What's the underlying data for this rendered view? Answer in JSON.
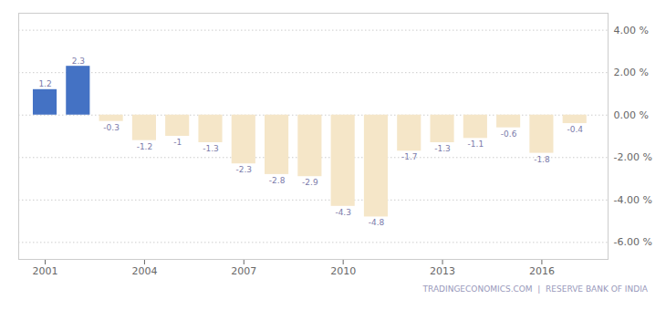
{
  "chart_data": {
    "type": "bar",
    "x": [
      2001,
      2002,
      2003,
      2004,
      2005,
      2006,
      2007,
      2008,
      2009,
      2010,
      2011,
      2012,
      2013,
      2014,
      2015,
      2016,
      2017
    ],
    "values": [
      1.2,
      2.3,
      -0.3,
      -1.2,
      -1.0,
      -1.3,
      -2.3,
      -2.8,
      -2.9,
      -4.3,
      -4.8,
      -1.7,
      -1.3,
      -1.1,
      -0.6,
      -1.8,
      -0.4
    ],
    "colors": [
      "#4472c4",
      "#4472c4",
      "#f5e6c8",
      "#f5e6c8",
      "#f5e6c8",
      "#f5e6c8",
      "#f5e6c8",
      "#f5e6c8",
      "#f5e6c8",
      "#f5e6c8",
      "#f5e6c8",
      "#f5e6c8",
      "#f5e6c8",
      "#f5e6c8",
      "#f5e6c8",
      "#f5e6c8",
      "#f5e6c8"
    ],
    "xlim": [
      2000.2,
      2018.0
    ],
    "xticks": [
      2001,
      2004,
      2007,
      2010,
      2013,
      2016
    ],
    "ylim": [
      -6.8,
      4.8
    ],
    "yticks": [
      {
        "value": -6.0,
        "label": "-6.00 %"
      },
      {
        "value": -4.0,
        "label": "-4.00 %"
      },
      {
        "value": -2.0,
        "label": "-2.00 %"
      },
      {
        "value": 0.0,
        "label": "0.00 %"
      },
      {
        "value": 2.0,
        "label": "2.00 %"
      },
      {
        "value": 4.0,
        "label": "4.00 %"
      }
    ],
    "grid": true,
    "data_labels": true,
    "annotations": [
      "TRADINGECONOMICS.COM  |  RESERVE BANK OF INDIA"
    ]
  }
}
